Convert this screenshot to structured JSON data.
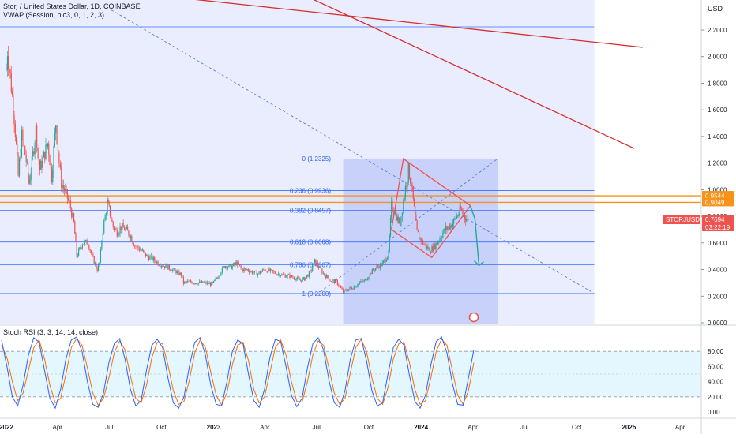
{
  "header": {
    "title": "Storj / United States Dollar, 1D, COINBASE",
    "indicator": "VWAP (Session, hlc3, 0, 1, 2, 3)"
  },
  "price_axis": {
    "currency": "USD",
    "ticks": [
      "2.2000",
      "2.0000",
      "1.8000",
      "1.6000",
      "1.4000",
      "1.2000",
      "1.0000",
      "0.8000",
      "0.6000",
      "0.4000",
      "0.2000",
      "0.0000"
    ]
  },
  "price_badges": [
    {
      "label": "0.9544",
      "color": "#f7931a"
    },
    {
      "label": "0.9049",
      "color": "#f7931a"
    }
  ],
  "symbol_badge": {
    "symbol": "STORJUSD",
    "price": "0.7694",
    "countdown": "03:22:19",
    "color": "#ef5350"
  },
  "rsi": {
    "label": "Stoch RSI (3, 3, 14, 14, close)",
    "ticks": [
      "80.00",
      "60.00",
      "40.00",
      "20.00",
      "0.00"
    ]
  },
  "time_axis": [
    "2022",
    "Apr",
    "Jul",
    "Oct",
    "2023",
    "Apr",
    "Jul",
    "Oct",
    "2024",
    "Apr",
    "Jul",
    "Oct",
    "2025",
    "Apr"
  ],
  "colors": {
    "up": "#26a69a",
    "down": "#ef5350",
    "fib": "#2962ff",
    "trend": "#d32f2f",
    "orange": "#f7931a",
    "rsi_k": "#2962ff",
    "rsi_d": "#ff6d00",
    "arrow": "#26a69a"
  },
  "chart_data": [
    {
      "type": "line",
      "title": "Storj / United States Dollar, 1D, COINBASE",
      "ylabel": "USD",
      "ylim": [
        0,
        2.4
      ],
      "xlim": [
        "2022-01-01",
        "2025-04-30"
      ],
      "series": [
        {
          "x": [
            "2022-01-01",
            "2022-01-03",
            "2022-01-08",
            "2022-01-15",
            "2022-01-22",
            "2022-01-28",
            "2022-02-05",
            "2022-02-10",
            "2022-02-15",
            "2022-02-22",
            "2022-03-01",
            "2022-03-08",
            "2022-03-15",
            "2022-03-22",
            "2022-03-29",
            "2022-04-04",
            "2022-04-08",
            "2022-04-15",
            "2022-04-22",
            "2022-04-30",
            "2022-05-05",
            "2022-05-10",
            "2022-05-15",
            "2022-05-25",
            "2022-06-01",
            "2022-06-10",
            "2022-06-14",
            "2022-06-20",
            "2022-06-28",
            "2022-07-01",
            "2022-07-08",
            "2022-07-15",
            "2022-07-22",
            "2022-07-30",
            "2022-08-08",
            "2022-08-15",
            "2022-08-25",
            "2022-09-05",
            "2022-09-15",
            "2022-09-25",
            "2022-10-05",
            "2022-10-15",
            "2022-10-25",
            "2022-11-05",
            "2022-11-09",
            "2022-11-20",
            "2022-12-01",
            "2022-12-15",
            "2022-12-30",
            "2023-01-10",
            "2023-01-20",
            "2023-02-01",
            "2023-02-10",
            "2023-02-20",
            "2023-03-01",
            "2023-03-10",
            "2023-03-20",
            "2023-04-01",
            "2023-04-15",
            "2023-05-01",
            "2023-05-15",
            "2023-06-01",
            "2023-06-10",
            "2023-06-20",
            "2023-06-28",
            "2023-07-05",
            "2023-07-15",
            "2023-07-25",
            "2023-08-05",
            "2023-08-17",
            "2023-08-25",
            "2023-09-05",
            "2023-09-15",
            "2023-09-25",
            "2023-10-05",
            "2023-10-15",
            "2023-10-25",
            "2023-11-05",
            "2023-11-10",
            "2023-11-15",
            "2023-11-20",
            "2023-11-25",
            "2023-12-01",
            "2023-12-10",
            "2023-12-15",
            "2023-12-20",
            "2023-12-25",
            "2024-01-01",
            "2024-01-08",
            "2024-01-15",
            "2024-01-22",
            "2024-01-29",
            "2024-02-05",
            "2024-02-12",
            "2024-02-19",
            "2024-02-26",
            "2024-03-04",
            "2024-03-11",
            "2024-03-18",
            "2024-03-23"
          ],
          "y": [
            1.9,
            2.05,
            1.85,
            1.55,
            1.1,
            1.4,
            1.22,
            1.05,
            1.2,
            1.45,
            1.15,
            1.25,
            1.35,
            1.1,
            1.5,
            1.2,
            1.05,
            0.98,
            0.9,
            0.75,
            0.5,
            0.55,
            0.6,
            0.6,
            0.5,
            0.4,
            0.45,
            0.7,
            0.9,
            0.85,
            0.72,
            0.68,
            0.72,
            0.7,
            0.65,
            0.58,
            0.55,
            0.5,
            0.48,
            0.45,
            0.43,
            0.41,
            0.39,
            0.36,
            0.3,
            0.31,
            0.3,
            0.3,
            0.29,
            0.36,
            0.43,
            0.42,
            0.45,
            0.4,
            0.4,
            0.38,
            0.37,
            0.4,
            0.38,
            0.36,
            0.35,
            0.32,
            0.33,
            0.38,
            0.46,
            0.42,
            0.36,
            0.32,
            0.31,
            0.23,
            0.25,
            0.27,
            0.3,
            0.32,
            0.38,
            0.42,
            0.44,
            0.52,
            0.88,
            0.85,
            0.78,
            0.75,
            0.92,
            1.15,
            1.05,
            0.85,
            0.68,
            0.62,
            0.58,
            0.55,
            0.56,
            0.6,
            0.65,
            0.7,
            0.72,
            0.75,
            0.8,
            0.85,
            0.8,
            0.77
          ]
        }
      ],
      "horizontal_lines": [
        2.2235,
        1.4552,
        0.9936,
        0.8457,
        0.6068,
        0.4367,
        0.22
      ],
      "orange_lines": [
        0.9544,
        0.9049
      ],
      "fib_levels": [
        {
          "label": "0 (1.2325)",
          "value": 1.2325
        },
        {
          "label": "0.236 (0.9936)",
          "value": 0.9936
        },
        {
          "label": "0.382 (0.8457)",
          "value": 0.8457
        },
        {
          "label": "0.618 (0.6068)",
          "value": 0.6068
        },
        {
          "label": "0.786 (0.4367)",
          "value": 0.4367
        },
        {
          "label": "1 (0.2200)",
          "value": 0.22
        }
      ],
      "fib_range": {
        "start": "2023-08-17",
        "end": "2024-05-15"
      },
      "shaded_range": {
        "start": "2022-01-01",
        "end": "2024-11-01"
      },
      "trendlines": [
        {
          "start": [
            "2022-10-15",
            2.45
          ],
          "end": [
            "2025-01-25",
            2.07
          ],
          "color": "#d32f2f"
        },
        {
          "start": [
            "2023-06-15",
            2.45
          ],
          "end": [
            "2025-01-10",
            1.31
          ],
          "color": "#d32f2f"
        }
      ],
      "dashed_lines": [
        {
          "start": [
            "2022-07-05",
            2.35
          ],
          "end": [
            "2024-11-01",
            0.22
          ]
        },
        {
          "start": [
            "2023-07-01",
            0.21
          ],
          "end": [
            "2024-05-15",
            1.2325
          ]
        }
      ],
      "rhombus": [
        [
          "2023-12-01",
          1.2325
        ],
        [
          "2024-03-28",
          0.88
        ],
        [
          "2024-01-20",
          0.49
        ],
        [
          "2023-11-10",
          0.7
        ]
      ],
      "projection_arrow": [
        [
          "2024-03-28",
          0.88
        ],
        [
          "2024-04-05",
          0.78
        ],
        [
          "2024-04-12",
          0.43
        ]
      ]
    },
    {
      "type": "line",
      "title": "Stoch RSI (3, 3, 14, 14, close)",
      "ylim": [
        -10,
        100
      ],
      "bands": [
        80,
        20
      ],
      "series": [
        {
          "name": "K",
          "y": [
            95,
            60,
            20,
            8,
            35,
            75,
            98,
            92,
            55,
            18,
            5,
            30,
            70,
            95,
            99,
            80,
            40,
            10,
            6,
            25,
            65,
            90,
            97,
            70,
            30,
            8,
            15,
            55,
            88,
            96,
            85,
            45,
            12,
            5,
            20,
            60,
            92,
            98,
            75,
            35,
            10,
            8,
            40,
            80,
            95,
            90,
            50,
            15,
            6,
            30,
            72,
            96,
            93,
            60,
            22,
            7,
            18,
            58,
            90,
            98,
            82,
            42,
            12,
            6,
            28,
            70,
            95,
            97,
            68,
            28,
            8,
            12,
            50,
            85,
            96,
            88,
            48,
            14,
            5,
            22,
            62,
            93,
            99,
            78,
            38,
            10,
            9,
            45,
            82
          ]
        },
        {
          "name": "D",
          "y": [
            88,
            72,
            40,
            15,
            25,
            55,
            85,
            95,
            70,
            35,
            12,
            18,
            50,
            85,
            97,
            88,
            58,
            25,
            9,
            18,
            45,
            78,
            94,
            82,
            48,
            18,
            12,
            35,
            72,
            92,
            90,
            62,
            28,
            10,
            14,
            42,
            78,
            95,
            85,
            52,
            22,
            9,
            25,
            62,
            88,
            92,
            68,
            30,
            12,
            20,
            52,
            85,
            95,
            75,
            40,
            14,
            13,
            40,
            75,
            94,
            88,
            58,
            25,
            10,
            18,
            52,
            85,
            96,
            80,
            45,
            18,
            10,
            32,
            70,
            90,
            92,
            65,
            30,
            10,
            15,
            45,
            80,
            96,
            88,
            55,
            22,
            10,
            28,
            65
          ]
        }
      ]
    }
  ]
}
